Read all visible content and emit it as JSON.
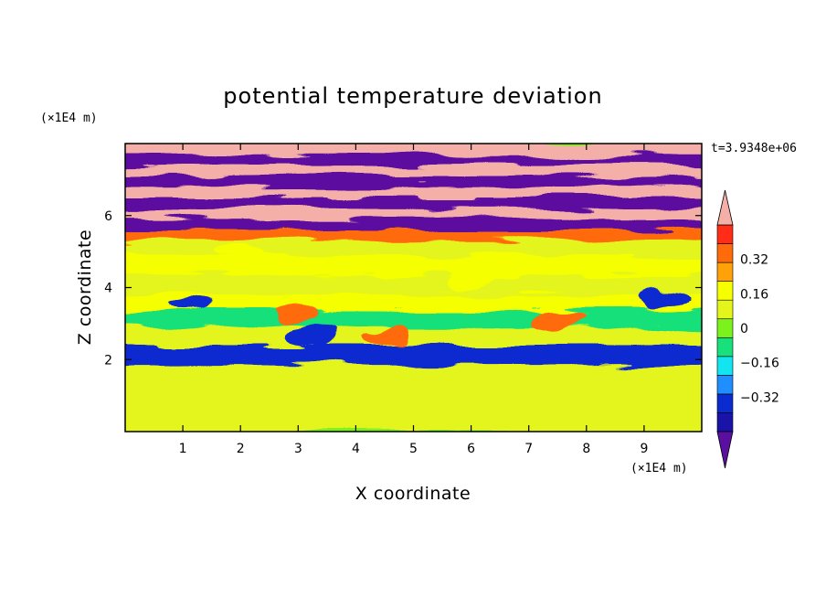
{
  "chart_data": {
    "type": "heatmap",
    "title": "potential temperature deviation",
    "xlabel": "X coordinate",
    "ylabel": "Z coordinate",
    "x_unit": "(×1E4 m)",
    "z_unit": "(×1E4 m)",
    "time_label": "t=3.9348e+06",
    "xlim": [
      0,
      10
    ],
    "zlim": [
      0,
      8
    ],
    "x_ticks": [
      "1",
      "2",
      "3",
      "4",
      "5",
      "6",
      "7",
      "8",
      "9"
    ],
    "z_ticks": [
      "2",
      "4",
      "6"
    ],
    "colorbar": {
      "levels": [
        -0.48,
        -0.4,
        -0.32,
        -0.24,
        -0.16,
        -0.08,
        0,
        0.08,
        0.16,
        0.24,
        0.32,
        0.4,
        0.48
      ],
      "labels": [
        "0.32",
        "0.16",
        "0",
        "−0.16",
        "−0.32"
      ],
      "label_values": [
        0.32,
        0.16,
        0,
        -0.16,
        -0.32
      ],
      "colors_low_to_high": [
        "#5b0fa0",
        "#1a13a8",
        "#0a2bd0",
        "#1f8fff",
        "#12e5f0",
        "#18e07a",
        "#7cf21c",
        "#e3f51a",
        "#f5ff00",
        "#ffa20a",
        "#ff6a0a",
        "#ff2d18",
        "#f4b0a8"
      ]
    },
    "layers_z": [
      {
        "z": 7.8,
        "value": 0.5
      },
      {
        "z": 7.5,
        "value": -0.5
      },
      {
        "z": 7.2,
        "value": 0.5
      },
      {
        "z": 6.9,
        "value": -0.5
      },
      {
        "z": 6.6,
        "value": 0.5
      },
      {
        "z": 6.3,
        "value": -0.5
      },
      {
        "z": 6.0,
        "value": 0.45
      },
      {
        "z": 5.7,
        "value": -0.5
      },
      {
        "z": 5.4,
        "value": 0.3
      },
      {
        "z": 5.1,
        "value": 0.05
      },
      {
        "z": 4.6,
        "value": 0.1
      },
      {
        "z": 4.0,
        "value": 0.02
      },
      {
        "z": 3.5,
        "value": 0.12
      },
      {
        "z": 3.1,
        "value": -0.1
      },
      {
        "z": 2.6,
        "value": 0.06
      },
      {
        "z": 2.1,
        "value": -0.35
      },
      {
        "z": 1.5,
        "value": 0.08
      },
      {
        "z": 0.7,
        "value": 0.02
      }
    ]
  }
}
